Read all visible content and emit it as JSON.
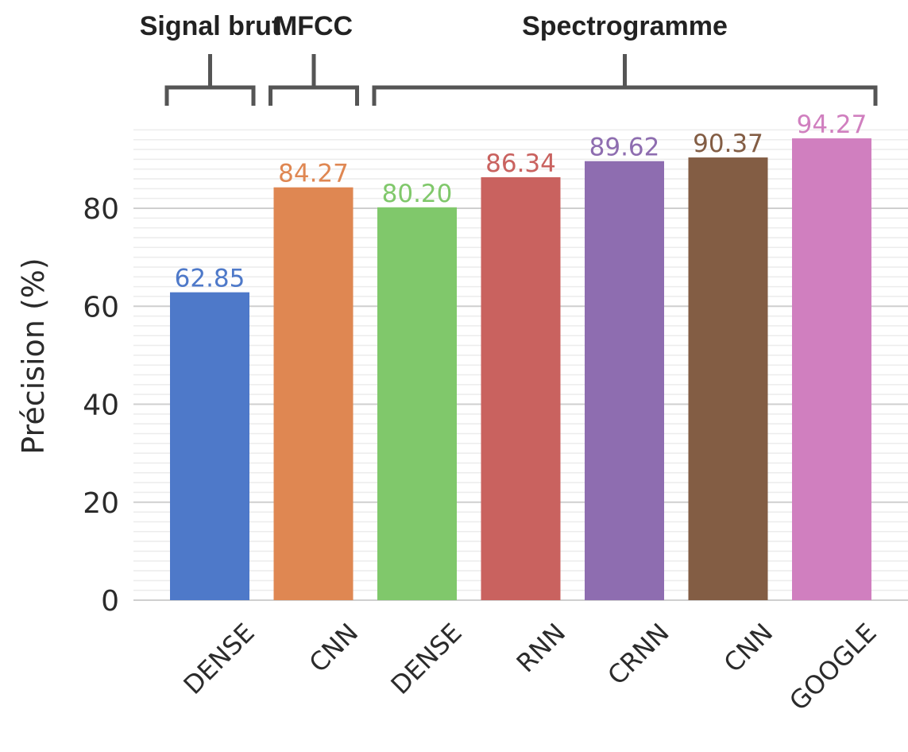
{
  "chart_data": {
    "type": "bar",
    "categories": [
      "DENSE",
      "CNN",
      "DENSE",
      "RNN",
      "CRNN",
      "CNN",
      "GOOGLE"
    ],
    "values": [
      62.85,
      84.27,
      80.2,
      86.34,
      89.62,
      90.37,
      94.27
    ],
    "value_labels": [
      "62.85",
      "84.27",
      "80.20",
      "86.34",
      "89.62",
      "90.37",
      "94.27"
    ],
    "colors": [
      "#4e79c9",
      "#df8752",
      "#80c86b",
      "#c9625f",
      "#8e6db0",
      "#835d44",
      "#d07fbf"
    ],
    "title": "",
    "xlabel": "",
    "ylabel": "Précision (%)",
    "ylim": [
      0,
      96
    ],
    "yticks": [
      "0",
      "20",
      "40",
      "60",
      "80"
    ],
    "grid": true,
    "groups": [
      {
        "label": "Signal brut",
        "start": 0,
        "end": 0
      },
      {
        "label": "MFCC",
        "start": 1,
        "end": 1
      },
      {
        "label": "Spectrogramme",
        "start": 2,
        "end": 6
      }
    ]
  }
}
